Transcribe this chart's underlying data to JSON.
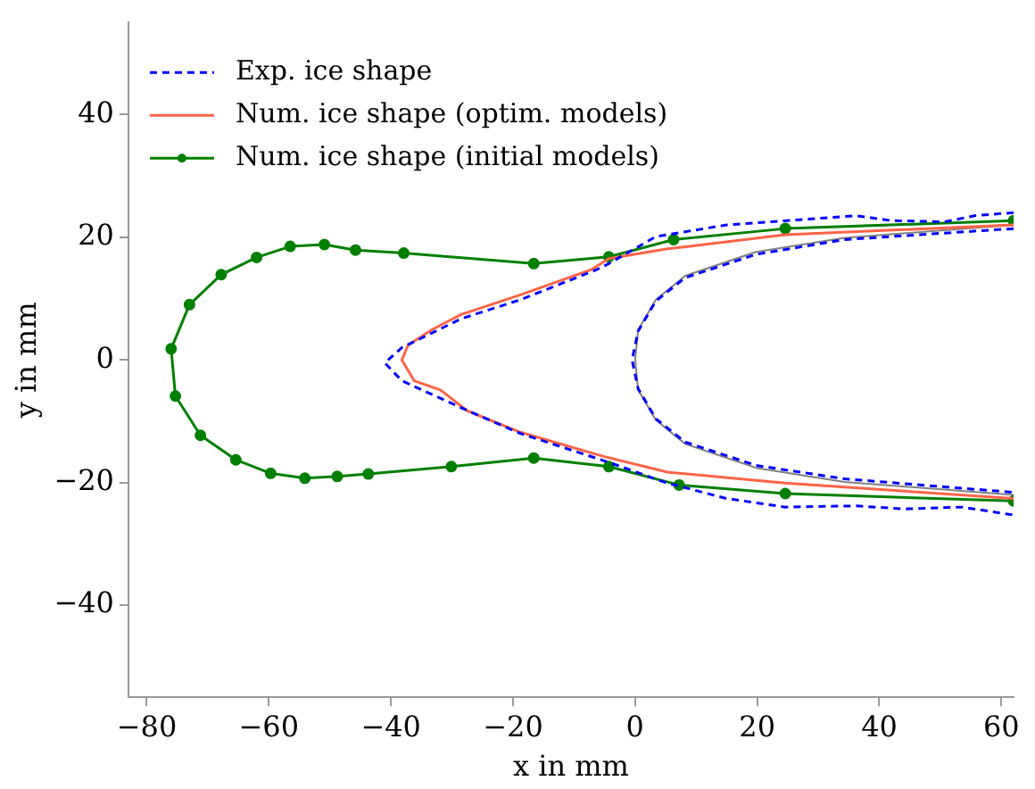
{
  "chart_data": {
    "type": "line",
    "xlabel": "x in mm",
    "ylabel": "y in mm",
    "xlim": [
      -83,
      62
    ],
    "ylim": [
      -55,
      55
    ],
    "xticks": [
      -80,
      -60,
      -40,
      -20,
      0,
      20,
      40,
      60
    ],
    "yticks": [
      -40,
      -20,
      0,
      20,
      40
    ],
    "grid": false,
    "legend": "top left",
    "series": [
      {
        "name": "Exp. ice shape",
        "color": "#0000ff",
        "line_style": "dashed",
        "marker": "none",
        "x": [
          62,
          55.6,
          50.7,
          42,
          36.2,
          15,
          3.4,
          -4.3,
          -6.3,
          -18.8,
          -28.5,
          -38.2,
          -41,
          -38.2,
          -28.5,
          -18.8,
          -4.3,
          5.3,
          15,
          24.6,
          36.2,
          44,
          53.6,
          62
        ],
        "values": [
          24,
          23.5,
          22.5,
          22.7,
          23.5,
          22,
          20.1,
          15.7,
          14.7,
          9.8,
          6.7,
          2,
          -0.5,
          -3.4,
          -7.8,
          -12,
          -16.7,
          -20.1,
          -22.6,
          -24,
          -23.8,
          -24.3,
          -24,
          -25.3
        ]
      },
      {
        "name": "Num. ice shape (optim. models)",
        "color": "#ff6347",
        "line_style": "solid",
        "marker": "none",
        "x": [
          62,
          24.6,
          5.3,
          -4.3,
          -7.2,
          -18.8,
          -28.5,
          -33.3,
          -37.2,
          -38.2,
          -36.2,
          -31.9,
          -27.5,
          -18.8,
          -5.3,
          5.3,
          24.6,
          62
        ],
        "values": [
          22,
          20.4,
          18.1,
          16.5,
          14.7,
          10.6,
          7.4,
          4.9,
          2.4,
          0,
          -3.4,
          -4.9,
          -8.3,
          -11.8,
          -15.7,
          -18.3,
          -20.1,
          -22.6
        ]
      },
      {
        "name": "Num. ice shape (initial models)",
        "color": "#007f00",
        "line_style": "solid",
        "marker": "circle",
        "x": [
          62,
          24.6,
          6.3,
          -4.3,
          -16.6,
          -37.9,
          -45.8,
          -50.9,
          -56.5,
          -62,
          -67.8,
          -73,
          -76,
          -75.3,
          -71.2,
          -65.4,
          -59.7,
          -54.1,
          -48.8,
          -43.7,
          -30.1,
          -16.6,
          -4.3,
          7.2,
          24.6,
          62
        ],
        "values": [
          22.7,
          21.4,
          19.6,
          16.8,
          15.7,
          17.4,
          17.9,
          18.8,
          18.5,
          16.7,
          13.9,
          9,
          1.8,
          -5.9,
          -12.3,
          -16.3,
          -18.5,
          -19.3,
          -19,
          -18.6,
          -17.4,
          -16,
          -17.4,
          -20.4,
          -21.8,
          -23
        ]
      },
      {
        "color": "#0000ff",
        "line_style": "dashed",
        "marker": "none",
        "x": [
          62,
          34.3,
          19.8,
          8.2,
          3.4,
          0.5,
          -0.5,
          0.5,
          3.4,
          8.2,
          19.8,
          34.3,
          62
        ],
        "values": [
          21.4,
          19.6,
          17.2,
          13.4,
          9.6,
          4.7,
          0,
          -4.7,
          -9.6,
          -13.4,
          -17.2,
          -19.4,
          -21.6
        ]
      },
      {
        "color": "#808080",
        "line_style": "solid",
        "marker": "none",
        "x": [
          62,
          34.3,
          19.8,
          8.2,
          3.4,
          0.5,
          0,
          0.5,
          3.4,
          8.2,
          19.8,
          34.3,
          62
        ],
        "values": [
          22,
          19.9,
          17.6,
          13.7,
          9.8,
          4.9,
          0,
          -4.9,
          -9.8,
          -13.7,
          -17.6,
          -19.9,
          -22
        ]
      }
    ]
  }
}
